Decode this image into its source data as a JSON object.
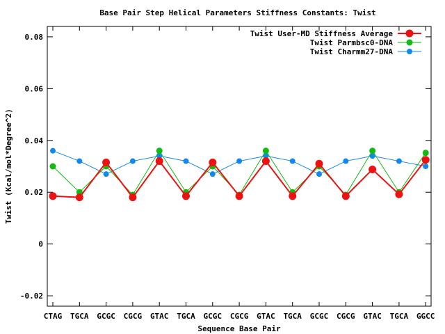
{
  "chart_data": {
    "type": "line",
    "title": "Base Pair Step Helical Parameters Stiffness Constants: Twist",
    "xlabel": "Sequence Base Pair",
    "ylabel": "Twist (Kcal/mol*Degree^2)",
    "categories": [
      "CTAG",
      "TGCA",
      "GCGC",
      "CGCG",
      "GTAC",
      "TGCA",
      "GCGC",
      "CGCG",
      "GTAC",
      "TGCA",
      "GCGC",
      "CGCG",
      "GTAC",
      "TGCA",
      "GGCC"
    ],
    "ylim": [
      -0.024,
      0.084
    ],
    "yticks": [
      -0.02,
      0,
      0.02,
      0.04,
      0.06,
      0.08
    ],
    "ytick_labels": [
      "-0.02",
      "0",
      "0.02",
      "0.04",
      "0.06",
      "0.08"
    ],
    "grid": false,
    "legend_position": "top-right",
    "series": [
      {
        "name": "Twist User-MD Stiffness Average",
        "color": "#ee1111",
        "line_width": 2,
        "marker_size": 5.5,
        "values": [
          0.0185,
          0.018,
          0.0315,
          0.018,
          0.032,
          0.0185,
          0.0315,
          0.0185,
          0.032,
          0.0185,
          0.031,
          0.0185,
          0.0288,
          0.0192,
          0.0325
        ]
      },
      {
        "name": "Twist Parmbsc0-DNA",
        "color": "#11bb11",
        "line_width": 1,
        "marker_size": 4.5,
        "values": [
          0.03,
          0.02,
          0.03,
          0.019,
          0.036,
          0.02,
          0.03,
          0.019,
          0.036,
          0.02,
          0.03,
          0.019,
          0.036,
          0.02,
          0.0352
        ]
      },
      {
        "name": "Twist Charmm27-DNA",
        "color": "#1188ee",
        "line_width": 1,
        "marker_size": 4,
        "values": [
          0.036,
          0.032,
          0.027,
          0.032,
          0.034,
          0.032,
          0.027,
          0.032,
          0.034,
          0.032,
          0.027,
          0.032,
          0.034,
          0.032,
          0.03
        ]
      }
    ]
  }
}
